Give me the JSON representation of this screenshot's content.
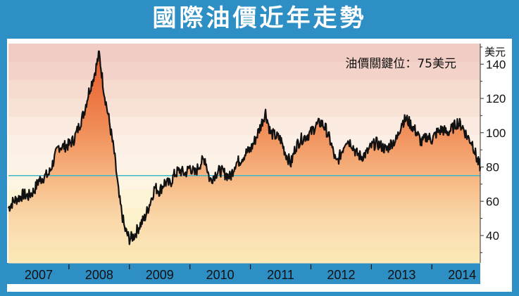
{
  "title": "國際油價近年走勢",
  "annotation": "油價關鍵位：75美元",
  "colors": {
    "frame": "#2e8fc4",
    "reference_line": "#3ab7c9",
    "price_line": "#111111"
  },
  "chart_data": {
    "type": "area",
    "title": "國際油價近年走勢",
    "ylabel": "美元",
    "ylim": [
      24,
      152
    ],
    "yticks": [
      "40",
      "60",
      "80",
      "100",
      "120",
      "140"
    ],
    "x_tick_labels": [
      "2007",
      "2008",
      "2009",
      "2010",
      "2011",
      "2012",
      "2013",
      "2014"
    ],
    "reference_line": {
      "value": 75,
      "label": "油價關鍵位：75美元"
    },
    "grid": false,
    "series": [
      {
        "x": [
          2007.0,
          2007.08,
          2007.17,
          2007.25,
          2007.33,
          2007.42,
          2007.5,
          2007.58,
          2007.67,
          2007.75,
          2007.83,
          2007.92,
          2008.0,
          2008.08,
          2008.17,
          2008.25,
          2008.33,
          2008.42,
          2008.5,
          2008.58,
          2008.67,
          2008.75,
          2008.83,
          2008.92,
          2009.0,
          2009.08,
          2009.17,
          2009.25,
          2009.33,
          2009.42,
          2009.5,
          2009.58,
          2009.67,
          2009.75,
          2009.83,
          2009.92,
          2010.0,
          2010.08,
          2010.17,
          2010.25,
          2010.33,
          2010.42,
          2010.5,
          2010.58,
          2010.67,
          2010.75,
          2010.83,
          2010.92,
          2011.0,
          2011.08,
          2011.17,
          2011.25,
          2011.33,
          2011.42,
          2011.5,
          2011.58,
          2011.67,
          2011.75,
          2011.83,
          2011.92,
          2012.0,
          2012.08,
          2012.17,
          2012.25,
          2012.33,
          2012.42,
          2012.5,
          2012.58,
          2012.67,
          2012.75,
          2012.83,
          2012.92,
          2013.0,
          2013.08,
          2013.17,
          2013.25,
          2013.33,
          2013.42,
          2013.5,
          2013.58,
          2013.67,
          2013.75,
          2013.83,
          2013.92,
          2014.0,
          2014.08,
          2014.17,
          2014.25,
          2014.33,
          2014.42,
          2014.5,
          2014.58,
          2014.67,
          2014.75,
          2014.8
        ],
        "values": [
          56,
          60,
          62,
          64,
          63,
          66,
          72,
          74,
          76,
          84,
          92,
          92,
          93,
          96,
          104,
          112,
          124,
          134,
          146,
          124,
          106,
          88,
          62,
          44,
          38,
          40,
          46,
          50,
          58,
          68,
          66,
          71,
          70,
          76,
          78,
          76,
          80,
          76,
          82,
          85,
          72,
          76,
          78,
          76,
          74,
          82,
          84,
          88,
          90,
          96,
          104,
          112,
          100,
          98,
          96,
          88,
          82,
          92,
          96,
          98,
          100,
          104,
          106,
          102,
          94,
          82,
          88,
          96,
          94,
          88,
          86,
          88,
          92,
          94,
          92,
          90,
          94,
          96,
          106,
          108,
          104,
          100,
          94,
          98,
          96,
          100,
          102,
          100,
          102,
          106,
          104,
          98,
          94,
          84,
          80
        ]
      }
    ]
  }
}
